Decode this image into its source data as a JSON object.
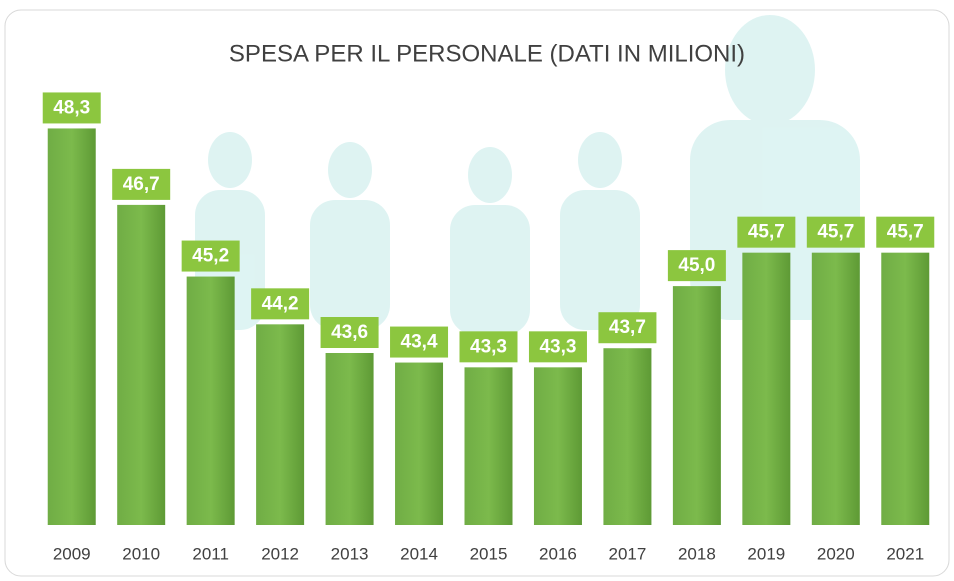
{
  "chart_data": {
    "type": "bar",
    "title": "SPESA PER IL PERSONALE (DATI IN MILIONI)",
    "categories": [
      "2009",
      "2010",
      "2011",
      "2012",
      "2013",
      "2014",
      "2015",
      "2016",
      "2017",
      "2018",
      "2019",
      "2020",
      "2021"
    ],
    "values": [
      48.3,
      46.7,
      45.2,
      44.2,
      43.6,
      43.4,
      43.3,
      43.3,
      43.7,
      45.0,
      45.7,
      45.7,
      45.7
    ],
    "value_labels": [
      "48,3",
      "46,7",
      "45,2",
      "44,2",
      "43,6",
      "43,4",
      "43,3",
      "43,3",
      "43,7",
      "45,0",
      "45,7",
      "45,7",
      "45,7"
    ],
    "color": "#6aa83e",
    "label_color": "#8cc63f",
    "ylim": [
      40,
      49
    ]
  }
}
